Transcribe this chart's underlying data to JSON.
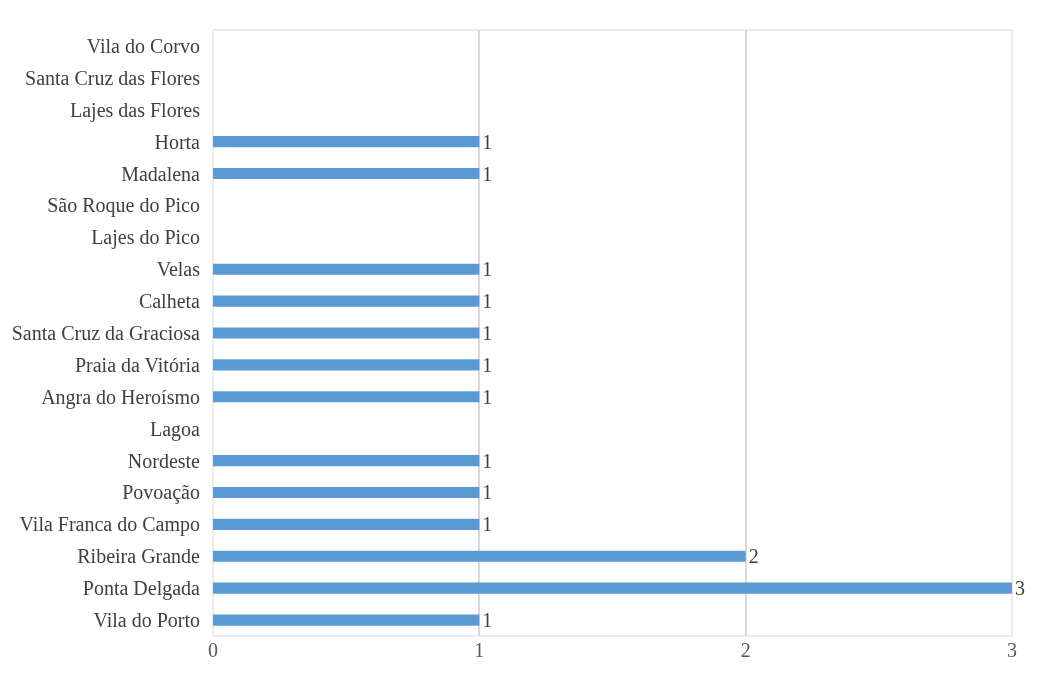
{
  "chart_data": {
    "type": "bar",
    "orientation": "horizontal",
    "categories": [
      "Vila do Corvo",
      "Santa Cruz das Flores",
      "Lajes das Flores",
      "Horta",
      "Madalena",
      "São Roque do Pico",
      "Lajes do Pico",
      "Velas",
      "Calheta",
      "Santa Cruz da Graciosa",
      "Praia da Vitória",
      "Angra do Heroísmo",
      "Lagoa",
      "Nordeste",
      "Povoação",
      "Vila Franca do Campo",
      "Ribeira Grande",
      "Ponta Delgada",
      "Vila do Porto"
    ],
    "values": [
      null,
      null,
      null,
      1,
      1,
      null,
      null,
      1,
      1,
      1,
      1,
      1,
      null,
      1,
      1,
      1,
      2,
      3,
      1
    ],
    "color": "#5b9bd5",
    "xlim": [
      0,
      3
    ],
    "xticks": [
      0,
      1,
      2,
      3
    ],
    "grid": "x",
    "data_labels": true
  }
}
